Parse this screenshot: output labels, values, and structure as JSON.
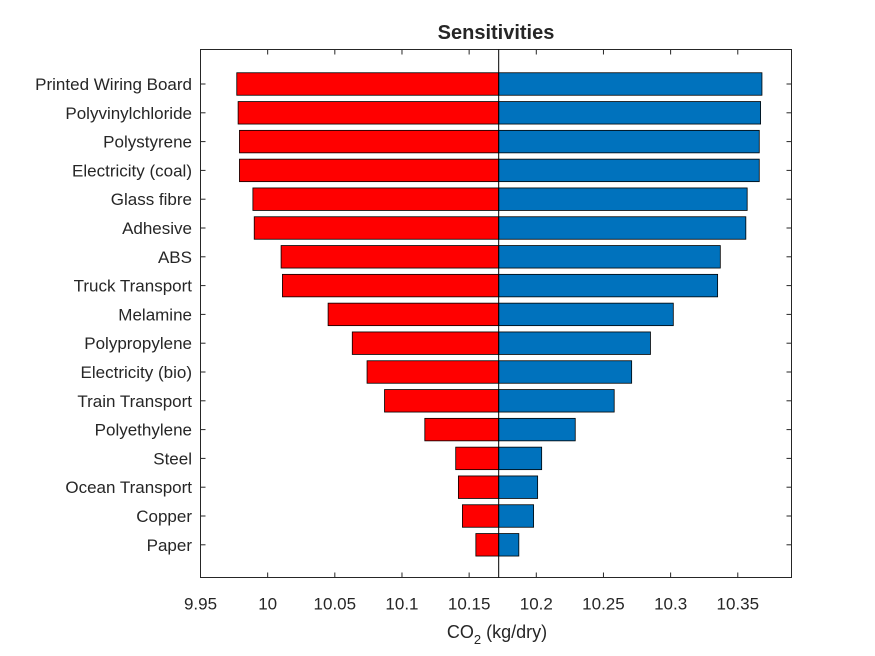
{
  "chart_data": {
    "type": "bar",
    "orientation": "horizontal",
    "title": "Sensitivities",
    "xlabel_main": "CO",
    "xlabel_sub": "2",
    "xlabel_rest": " (kg/dry)",
    "ylabel": "",
    "baseline": 10.172,
    "xlim": [
      9.95,
      10.39
    ],
    "xticks": [
      9.95,
      10,
      10.05,
      10.1,
      10.15,
      10.2,
      10.25,
      10.3,
      10.35
    ],
    "xtick_labels": [
      "9.95",
      "10",
      "10.05",
      "10.1",
      "10.15",
      "10.2",
      "10.25",
      "10.3",
      "10.35"
    ],
    "grid": false,
    "legend": "none",
    "categories": [
      "Printed Wiring Board",
      "Polyvinylchloride",
      "Polystyrene",
      "Electricity (coal)",
      "Glass fibre",
      "Adhesive",
      "ABS",
      "Truck Transport",
      "Melamine",
      "Polypropylene",
      "Electricity (bio)",
      "Train Transport",
      "Polyethylene",
      "Steel",
      "Ocean Transport",
      "Copper",
      "Paper"
    ],
    "series": [
      {
        "color": "#ff0000",
        "values": [
          9.977,
          9.978,
          9.979,
          9.979,
          9.989,
          9.99,
          10.01,
          10.011,
          10.045,
          10.063,
          10.074,
          10.087,
          10.117,
          10.14,
          10.142,
          10.145,
          10.155
        ]
      },
      {
        "color": "#0072bd",
        "values": [
          10.368,
          10.367,
          10.366,
          10.366,
          10.357,
          10.356,
          10.337,
          10.335,
          10.302,
          10.285,
          10.271,
          10.258,
          10.229,
          10.204,
          10.201,
          10.198,
          10.187
        ]
      }
    ]
  }
}
